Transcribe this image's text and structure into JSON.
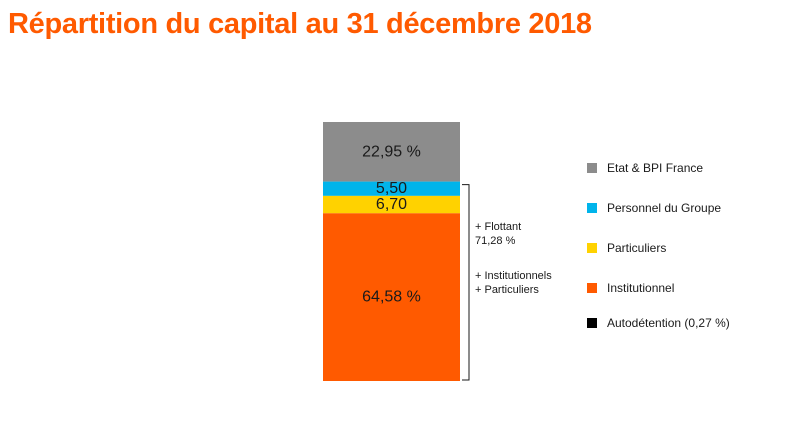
{
  "title": "Répartition du capital au 31 décembre 2018",
  "chart_data": {
    "type": "bar",
    "stacked": true,
    "title": "Répartition du capital au 31 décembre 2018",
    "segments": [
      {
        "name": "Etat & BPI France",
        "value": 22.95,
        "label": "22,95 %",
        "color": "#8c8c8c"
      },
      {
        "name": "Personnel du Groupe",
        "value": 5.5,
        "label": "5,50",
        "color": "#00b4eb"
      },
      {
        "name": "Particuliers",
        "value": 6.7,
        "label": "6,70",
        "color": "#ffd200"
      },
      {
        "name": "Institutionnel",
        "value": 64.58,
        "label": "64,58 %",
        "color": "#ff5a00"
      }
    ],
    "extra_legend": {
      "name": "Autodétention (0,27 %)",
      "value": 0.27,
      "color": "#000000"
    },
    "legend_position": "right",
    "grid": false,
    "annotations": [
      {
        "lines": [
          "+ Flottant",
          "71,28 %"
        ]
      },
      {
        "lines": [
          "+ Institutionnels",
          "+ Particuliers"
        ]
      }
    ]
  },
  "legend": {
    "items": [
      {
        "label": "Etat & BPI France",
        "color": "#8c8c8c"
      },
      {
        "label": "Personnel du Groupe",
        "color": "#00b4eb"
      },
      {
        "label": "Particuliers",
        "color": "#ffd200"
      },
      {
        "label": "Institutionnel",
        "color": "#ff5a00"
      },
      {
        "label": "Autodétention (0,27 %)",
        "color": "#000000"
      }
    ]
  }
}
